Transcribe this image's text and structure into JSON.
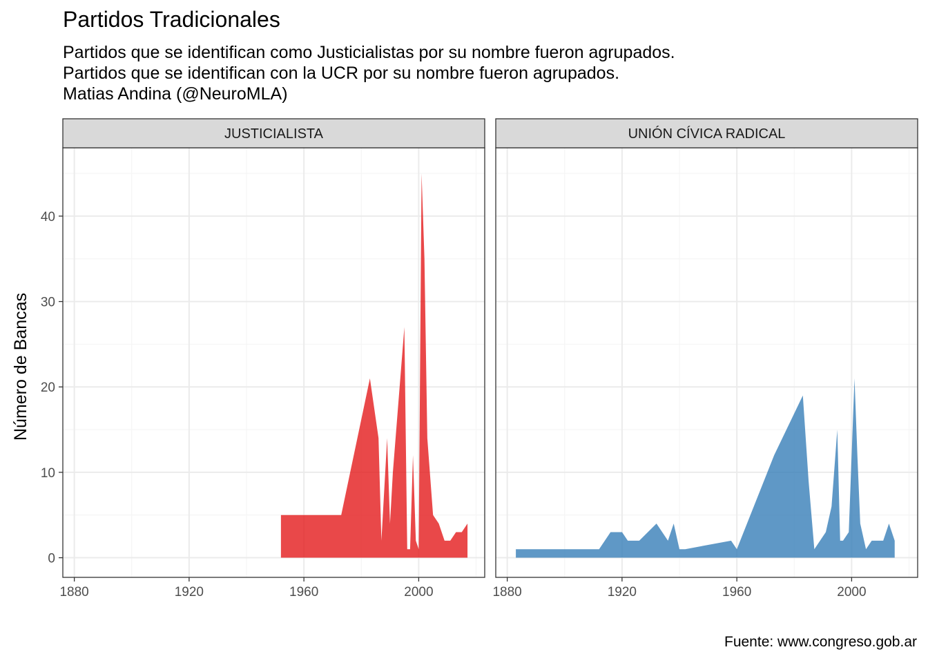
{
  "title": "Partidos Tradicionales",
  "subtitle": [
    "Partidos que se identifican como Justicialistas por su nombre fueron agrupados.",
    "Partidos que se identifican con la UCR por su nombre fueron agrupados.",
    "Matias Andina (@NeuroMLA)"
  ],
  "caption": "Fuente: www.congreso.gob.ar",
  "colors": {
    "justicialista": "#e41a1c",
    "ucr": "#377eb8",
    "strip_bg": "#d9d9d9",
    "grid_major": "#ebebeb",
    "grid_minor": "#f5f5f5"
  },
  "chart_data": {
    "type": "area",
    "ylabel": "Número de Bancas",
    "xlabel": "",
    "xlim": [
      1876,
      2023
    ],
    "ylim": [
      -2.3,
      48
    ],
    "x_ticks": [
      1880,
      1920,
      1960,
      2000
    ],
    "x_tick_labels": [
      "1880",
      "1920",
      "1960",
      "2000"
    ],
    "y_ticks": [
      0,
      10,
      20,
      30,
      40
    ],
    "y_tick_labels": [
      "0",
      "10",
      "20",
      "30",
      "40"
    ],
    "grid": true,
    "legend": "none",
    "panels": [
      {
        "name": "JUSTICIALISTA",
        "color": "#e41a1c",
        "x": [
          1952,
          1973,
          1983,
          1986,
          1987,
          1989,
          1990,
          1991,
          1995,
          1996,
          1997,
          1998,
          1999,
          2000,
          2001,
          2002,
          2003,
          2005,
          2007,
          2009,
          2011,
          2013,
          2015,
          2017
        ],
        "y": [
          5,
          5,
          21,
          14,
          2,
          14,
          4,
          10,
          27,
          1,
          1,
          12,
          2,
          1,
          45,
          35,
          14,
          5,
          4,
          2,
          2,
          3,
          3,
          4
        ]
      },
      {
        "name": "UNIÓN CÍVICA RADICAL",
        "color": "#377eb8",
        "x": [
          1883,
          1912,
          1916,
          1918,
          1920,
          1922,
          1924,
          1926,
          1932,
          1934,
          1936,
          1938,
          1940,
          1942,
          1958,
          1960,
          1973,
          1983,
          1985,
          1987,
          1989,
          1991,
          1993,
          1995,
          1996,
          1997,
          1999,
          2001,
          2002,
          2003,
          2005,
          2007,
          2009,
          2011,
          2013,
          2015
        ],
        "y": [
          1,
          1,
          3,
          3,
          3,
          2,
          2,
          2,
          4,
          3,
          2,
          4,
          1,
          1,
          2,
          1,
          12,
          19,
          9,
          1,
          2,
          3,
          6,
          15,
          2,
          2,
          3,
          21,
          12,
          4,
          1,
          2,
          2,
          2,
          4,
          2
        ]
      }
    ]
  }
}
